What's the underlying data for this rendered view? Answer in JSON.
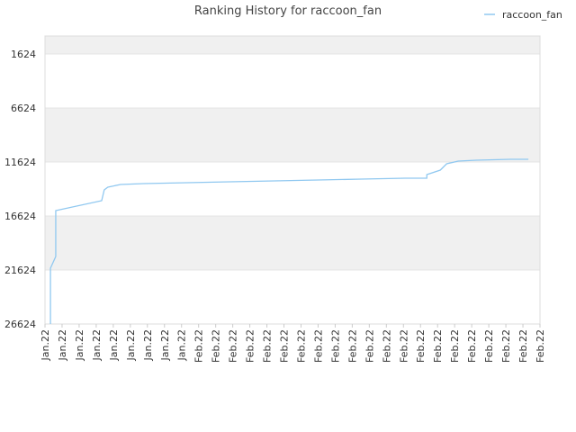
{
  "chart_data": {
    "type": "line",
    "title": "Ranking History for raccoon_fan",
    "series": [
      {
        "name": "raccoon_fan",
        "color": "#90c8f0",
        "x": [
          0.32,
          0.32,
          0.63,
          0.63,
          3.32,
          3.32,
          3.47,
          3.68,
          4.42,
          5.79,
          8.32,
          10.84,
          13.42,
          16,
          18.53,
          21.1,
          22.37,
          22.37,
          23.16,
          23.53,
          24.21,
          25.26,
          27.26,
          28.32
        ],
        "values": [
          26624,
          21457,
          20374,
          16124,
          15207,
          15207,
          14207,
          13957,
          13707,
          13624,
          13540,
          13457,
          13374,
          13290,
          13207,
          13124,
          13124,
          12790,
          12374,
          11790,
          11540,
          11457,
          11374,
          11374
        ]
      }
    ],
    "ylim": [
      26624,
      -43
    ],
    "yticks": [
      1624,
      6624,
      11624,
      16624,
      21624,
      26624
    ],
    "xlim": [
      0,
      29
    ],
    "xticks": [
      {
        "value": 0,
        "label": "Jan.22"
      },
      {
        "value": 1,
        "label": "Jan.22"
      },
      {
        "value": 2,
        "label": "Jan.22"
      },
      {
        "value": 3,
        "label": "Jan.22"
      },
      {
        "value": 4,
        "label": "Jan.22"
      },
      {
        "value": 5,
        "label": "Jan.22"
      },
      {
        "value": 6,
        "label": "Jan.22"
      },
      {
        "value": 7,
        "label": "Jan.22"
      },
      {
        "value": 8,
        "label": "Jan.22"
      },
      {
        "value": 9,
        "label": "Feb.22"
      },
      {
        "value": 10,
        "label": "Feb.22"
      },
      {
        "value": 11,
        "label": "Feb.22"
      },
      {
        "value": 12,
        "label": "Feb.22"
      },
      {
        "value": 13,
        "label": "Feb.22"
      },
      {
        "value": 14,
        "label": "Feb.22"
      },
      {
        "value": 15,
        "label": "Feb.22"
      },
      {
        "value": 16,
        "label": "Feb.22"
      },
      {
        "value": 17,
        "label": "Feb.22"
      },
      {
        "value": 18,
        "label": "Feb.22"
      },
      {
        "value": 19,
        "label": "Feb.22"
      },
      {
        "value": 20,
        "label": "Feb.22"
      },
      {
        "value": 21,
        "label": "Feb.22"
      },
      {
        "value": 22,
        "label": "Feb.22"
      },
      {
        "value": 23,
        "label": "Feb.22"
      },
      {
        "value": 24,
        "label": "Feb.22"
      },
      {
        "value": 25,
        "label": "Feb.22"
      },
      {
        "value": 26,
        "label": "Feb.22"
      },
      {
        "value": 27,
        "label": "Feb.22"
      },
      {
        "value": 28,
        "label": "Feb.22"
      },
      {
        "value": 29,
        "label": "Feb.22"
      }
    ],
    "legend": "top-right"
  }
}
